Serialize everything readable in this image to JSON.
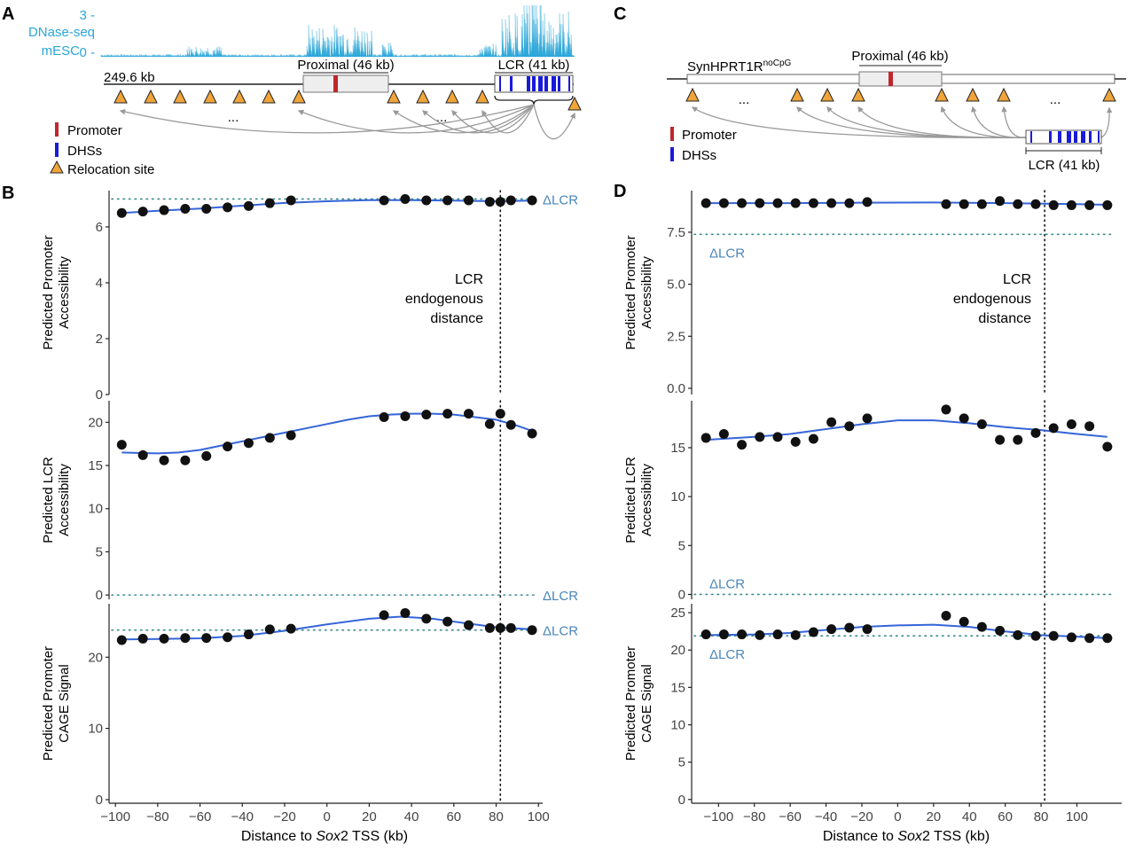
{
  "panel_labels": [
    "A",
    "B",
    "C",
    "D"
  ],
  "legend": {
    "promoter": "Promoter",
    "dhss": "DHSs",
    "relocation": "Relocation site"
  },
  "colors": {
    "dnase": "#29a6d9",
    "promoter": "#c0262d",
    "dhs": "#1a1adb",
    "relocation": "#f0a53a",
    "arrow": "#999999",
    "fit": "#3565d8",
    "dcr_line": "#3b8b8b",
    "dcr_text": "#4a86b8"
  },
  "panel_a": {
    "track_max": "3 -",
    "track_min": "0 -",
    "track_name": "DNase-seq",
    "cell": "mESC",
    "scale_label": "249.6 kb",
    "proximal_label": "Proximal (46 kb)",
    "lcr_label": "LCR (41 kb)",
    "ellipsis": "..."
  },
  "panel_c": {
    "construct_label": "SynHPRT1R",
    "construct_sup": "noCpG",
    "proximal_label": "Proximal (46 kb)",
    "lcr_label": "LCR (41 kb)",
    "ellipsis": "..."
  },
  "lcr_annotation": [
    "LCR",
    "endogenous",
    "distance"
  ],
  "x_axis": {
    "label_pre": "Distance to ",
    "label_italic": "Sox",
    "label_post": "2 TSS (kb)"
  },
  "chart_data": [
    {
      "type": "scatter",
      "panel": "B",
      "ylabel": [
        "Predicted Promoter",
        "Accessibility"
      ],
      "ylim": [
        0,
        7.3
      ],
      "yticks": [
        0,
        2,
        4,
        6
      ],
      "xlim": [
        -103,
        102
      ],
      "xticks": [
        -100,
        -80,
        -60,
        -40,
        -20,
        0,
        20,
        40,
        60,
        80,
        100
      ],
      "baseline": 7.0,
      "baseline_label": "ΔLCR",
      "lcr_endogenous_x": 82,
      "x": [
        -97,
        -87,
        -77,
        -67,
        -57,
        -47,
        -37,
        -27,
        -17,
        27,
        37,
        47,
        57,
        67,
        77,
        82,
        87,
        97
      ],
      "y": [
        6.5,
        6.55,
        6.6,
        6.65,
        6.65,
        6.7,
        6.75,
        6.85,
        6.95,
        6.95,
        7.0,
        6.95,
        6.95,
        6.95,
        6.9,
        6.9,
        6.95,
        6.95
      ],
      "fit": [
        [
          -97,
          6.5
        ],
        [
          -80,
          6.58
        ],
        [
          -60,
          6.66
        ],
        [
          -40,
          6.76
        ],
        [
          -20,
          6.86
        ],
        [
          0,
          6.92
        ],
        [
          20,
          6.96
        ],
        [
          40,
          6.96
        ],
        [
          60,
          6.94
        ],
        [
          80,
          6.92
        ],
        [
          97,
          6.94
        ]
      ]
    },
    {
      "type": "scatter",
      "panel": "B",
      "ylabel": [
        "Predicted LCR",
        "Accessibility"
      ],
      "ylim": [
        -0.5,
        22.5
      ],
      "yticks": [
        0,
        5,
        10,
        15,
        20
      ],
      "xlim": [
        -103,
        102
      ],
      "xticks": [
        -100,
        -80,
        -60,
        -40,
        -20,
        0,
        20,
        40,
        60,
        80,
        100
      ],
      "baseline": 0,
      "baseline_label": "ΔLCR",
      "lcr_endogenous_x": 82,
      "x": [
        -97,
        -87,
        -77,
        -67,
        -57,
        -47,
        -37,
        -27,
        -17,
        27,
        37,
        47,
        57,
        67,
        77,
        82,
        87,
        97
      ],
      "y": [
        17.4,
        16.2,
        15.6,
        15.6,
        16.1,
        17.2,
        17.6,
        18.2,
        18.5,
        20.6,
        20.7,
        20.9,
        21.0,
        21.0,
        19.8,
        21.0,
        19.7,
        18.7
      ],
      "fit": [
        [
          -97,
          16.5
        ],
        [
          -90,
          16.45
        ],
        [
          -80,
          16.4
        ],
        [
          -70,
          16.5
        ],
        [
          -60,
          16.8
        ],
        [
          -50,
          17.3
        ],
        [
          -40,
          17.8
        ],
        [
          -30,
          18.3
        ],
        [
          -20,
          18.8
        ],
        [
          -10,
          19.3
        ],
        [
          0,
          19.8
        ],
        [
          10,
          20.3
        ],
        [
          20,
          20.7
        ],
        [
          30,
          20.9
        ],
        [
          40,
          21.0
        ],
        [
          50,
          21.0
        ],
        [
          60,
          20.9
        ],
        [
          70,
          20.6
        ],
        [
          80,
          20.3
        ],
        [
          90,
          19.6
        ],
        [
          97,
          19.0
        ]
      ]
    },
    {
      "type": "scatter",
      "panel": "B",
      "ylabel": [
        "Predicted Promoter",
        "CAGE Signal"
      ],
      "ylim": [
        -0.5,
        27.5
      ],
      "yticks": [
        0,
        10,
        20
      ],
      "xlim": [
        -103,
        102
      ],
      "xticks": [
        -100,
        -80,
        -60,
        -40,
        -20,
        0,
        20,
        40,
        60,
        80,
        100
      ],
      "baseline": 23.8,
      "baseline_label": "ΔLCR",
      "lcr_endogenous_x": 82,
      "x": [
        -97,
        -87,
        -77,
        -67,
        -57,
        -47,
        -37,
        -27,
        -17,
        27,
        37,
        47,
        57,
        67,
        77,
        82,
        87,
        97
      ],
      "y": [
        22.4,
        22.6,
        22.6,
        22.7,
        22.7,
        22.8,
        23.2,
        23.9,
        24.0,
        25.9,
        26.2,
        25.4,
        25.0,
        24.5,
        24.1,
        24.1,
        24.1,
        23.8
      ],
      "fit": [
        [
          -97,
          22.5
        ],
        [
          -80,
          22.55
        ],
        [
          -60,
          22.65
        ],
        [
          -40,
          23.0
        ],
        [
          -20,
          23.7
        ],
        [
          0,
          24.6
        ],
        [
          20,
          25.4
        ],
        [
          35,
          25.7
        ],
        [
          50,
          25.4
        ],
        [
          65,
          24.8
        ],
        [
          80,
          24.2
        ],
        [
          97,
          23.9
        ]
      ]
    },
    {
      "type": "scatter",
      "panel": "D",
      "ylabel": [
        "Predicted Promoter",
        "Accessibility"
      ],
      "ylim": [
        -0.3,
        9.5
      ],
      "yticks": [
        0.0,
        2.5,
        5.0,
        7.5
      ],
      "ytick_labels": [
        "0.0",
        "2.5",
        "5.0",
        "7.5"
      ],
      "xlim": [
        -115,
        125
      ],
      "xticks": [
        -100,
        -80,
        -60,
        -40,
        -20,
        0,
        20,
        40,
        60,
        80,
        100
      ],
      "xtick_labels": [
        "−100",
        "−80",
        "−60",
        "−40",
        "−20",
        "0",
        "20",
        "40",
        "60",
        "80",
        "100"
      ],
      "baseline": 7.4,
      "baseline_label": "ΔLCR",
      "lcr_endogenous_x": 82,
      "x": [
        -107,
        -97,
        -87,
        -77,
        -67,
        -57,
        -47,
        -37,
        -27,
        -17,
        27,
        37,
        47,
        57,
        67,
        77,
        87,
        97,
        107,
        117
      ],
      "y": [
        8.9,
        8.9,
        8.9,
        8.9,
        8.9,
        8.9,
        8.9,
        8.9,
        8.9,
        8.95,
        8.85,
        8.85,
        8.85,
        9.0,
        8.85,
        8.85,
        8.8,
        8.8,
        8.8,
        8.8
      ],
      "fit": [
        [
          -107,
          8.9
        ],
        [
          -60,
          8.9
        ],
        [
          -20,
          8.92
        ],
        [
          20,
          8.93
        ],
        [
          60,
          8.9
        ],
        [
          100,
          8.85
        ],
        [
          117,
          8.82
        ]
      ]
    },
    {
      "type": "scatter",
      "panel": "D",
      "ylabel": [
        "Predicted LCR",
        "Accessibility"
      ],
      "ylim": [
        -0.5,
        19.8
      ],
      "yticks": [
        0,
        5,
        10,
        15
      ],
      "xlim": [
        -115,
        125
      ],
      "xticks": [
        -100,
        -80,
        -60,
        -40,
        -20,
        0,
        20,
        40,
        60,
        80,
        100
      ],
      "xtick_labels": [
        "−100",
        "−80",
        "−60",
        "−40",
        "−20",
        "0",
        "20",
        "40",
        "60",
        "80",
        "100"
      ],
      "baseline": 0,
      "baseline_label": "ΔLCR",
      "lcr_endogenous_x": 82,
      "x": [
        -107,
        -97,
        -87,
        -77,
        -67,
        -57,
        -47,
        -37,
        -27,
        -17,
        27,
        37,
        47,
        57,
        67,
        77,
        87,
        97,
        107,
        117
      ],
      "y": [
        16.0,
        16.4,
        15.3,
        16.1,
        16.1,
        15.6,
        15.9,
        17.6,
        17.2,
        18.0,
        18.9,
        18.0,
        17.4,
        15.8,
        15.8,
        16.5,
        17.0,
        17.4,
        17.2,
        15.1
      ],
      "fit": [
        [
          -107,
          15.8
        ],
        [
          -80,
          16.1
        ],
        [
          -60,
          16.4
        ],
        [
          -40,
          16.9
        ],
        [
          -20,
          17.4
        ],
        [
          0,
          17.8
        ],
        [
          20,
          17.8
        ],
        [
          40,
          17.5
        ],
        [
          60,
          17.1
        ],
        [
          80,
          16.8
        ],
        [
          100,
          16.4
        ],
        [
          117,
          16.1
        ]
      ]
    },
    {
      "type": "scatter",
      "panel": "D",
      "ylabel": [
        "Predicted Promoter",
        "CAGE Signal"
      ],
      "ylim": [
        -0.5,
        26.2
      ],
      "yticks": [
        0,
        5,
        10,
        15,
        20,
        25
      ],
      "xlim": [
        -115,
        125
      ],
      "xticks": [
        -100,
        -80,
        -60,
        -40,
        -20,
        0,
        20,
        40,
        60,
        80,
        100
      ],
      "xtick_labels": [
        "−100",
        "−80",
        "−60",
        "−40",
        "−20",
        "0",
        "20",
        "40",
        "60",
        "80",
        "100"
      ],
      "baseline": 21.9,
      "baseline_label": "ΔLCR",
      "lcr_endogenous_x": 82,
      "x": [
        -107,
        -97,
        -87,
        -77,
        -67,
        -57,
        -47,
        -37,
        -27,
        -17,
        27,
        37,
        47,
        57,
        67,
        77,
        87,
        97,
        107,
        117
      ],
      "y": [
        22.1,
        22.1,
        22.1,
        22.0,
        22.1,
        22.0,
        22.4,
        22.8,
        23.0,
        22.8,
        24.6,
        23.8,
        23.1,
        22.6,
        22.0,
        21.9,
        21.9,
        21.7,
        21.6,
        21.6
      ],
      "fit": [
        [
          -107,
          22.0
        ],
        [
          -80,
          22.1
        ],
        [
          -60,
          22.3
        ],
        [
          -40,
          22.7
        ],
        [
          -20,
          23.1
        ],
        [
          0,
          23.3
        ],
        [
          20,
          23.4
        ],
        [
          40,
          23.1
        ],
        [
          60,
          22.5
        ],
        [
          80,
          22.0
        ],
        [
          100,
          21.8
        ],
        [
          117,
          21.6
        ]
      ]
    }
  ]
}
